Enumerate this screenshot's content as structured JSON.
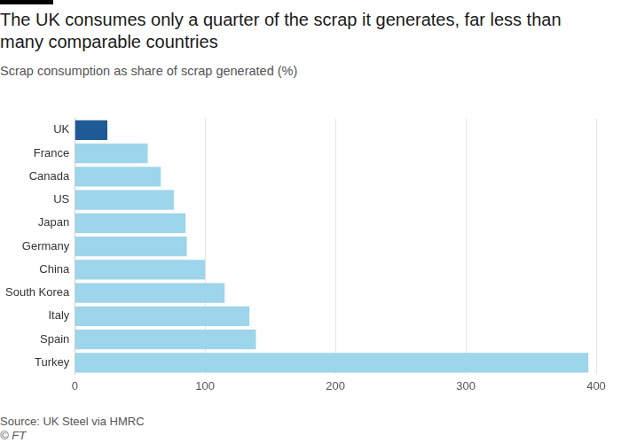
{
  "chart_data": {
    "type": "bar",
    "title": "The UK consumes only a quarter of the scrap it generates, far less than many comparable countries",
    "subtitle": "Scrap consumption as share of scrap generated (%)",
    "categories": [
      "UK",
      "France",
      "Canada",
      "US",
      "Japan",
      "Germany",
      "China",
      "South Korea",
      "Italy",
      "Spain",
      "Turkey"
    ],
    "values": [
      25,
      56,
      66,
      76,
      85,
      86,
      100,
      115,
      134,
      139,
      394
    ],
    "colors": [
      "#1e5a96",
      "#9dd5ea",
      "#9dd5ea",
      "#9dd5ea",
      "#9dd5ea",
      "#9dd5ea",
      "#9dd5ea",
      "#9dd5ea",
      "#9dd5ea",
      "#9dd5ea",
      "#9dd5ea"
    ],
    "orientation": "horizontal",
    "xlim": [
      0,
      400
    ],
    "xticks": [
      0,
      100,
      200,
      300,
      400
    ],
    "grid": true,
    "annotations": [
      "Source: UK Steel via HMRC",
      "© FT"
    ]
  }
}
